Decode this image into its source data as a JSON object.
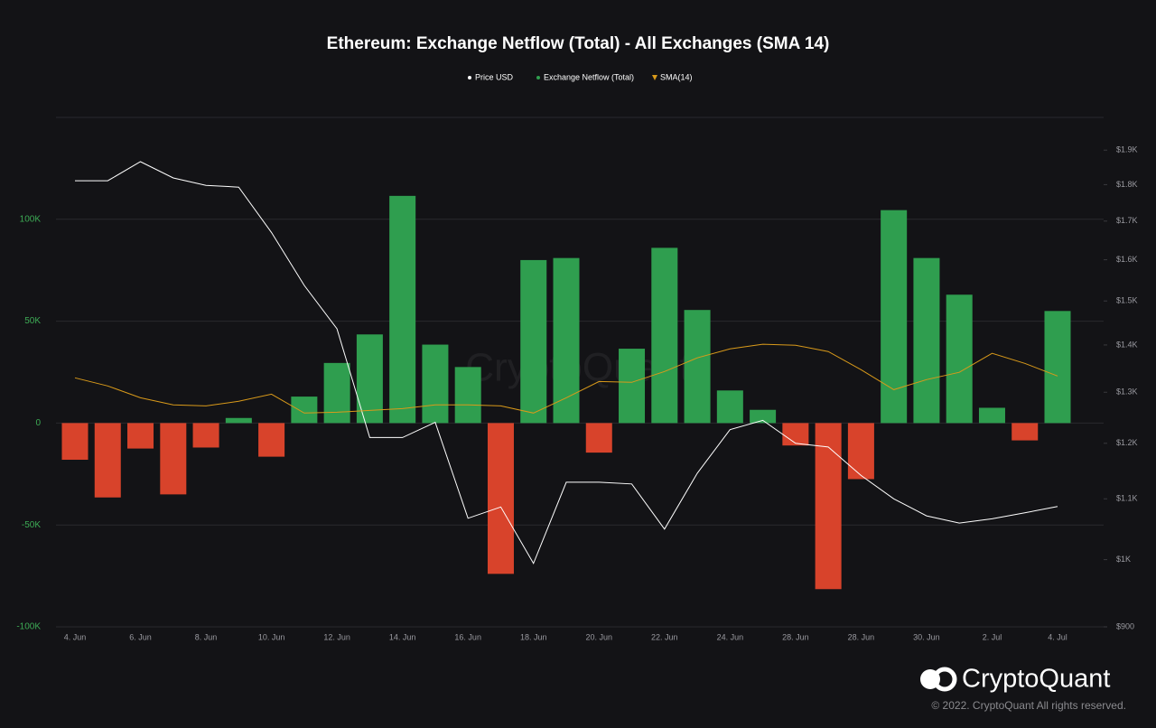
{
  "chart_data": {
    "type": "bar",
    "title": "Ethereum: Exchange Netflow (Total) - All Exchanges (SMA 14)",
    "watermark": "CryptoQuant",
    "categories": [
      "4. Jun",
      null,
      "6. Jun",
      null,
      "8. Jun",
      null,
      "10. Jun",
      null,
      "12. Jun",
      null,
      "14. Jun",
      null,
      "16. Jun",
      null,
      "18. Jun",
      null,
      "20. Jun",
      null,
      "22. Jun",
      null,
      "24. Jun",
      null,
      "28. Jun",
      null,
      "28. Jun",
      null,
      "30. Jun",
      null,
      "2. Jul",
      null,
      "4. Jul"
    ],
    "series": [
      {
        "name": "Price USD",
        "type": "line",
        "axis": "y2",
        "color": "#ffffff",
        "values": [
          1811,
          1811,
          1866,
          1819,
          1798,
          1793,
          1670,
          1537,
          1436,
          1211,
          1211,
          1240,
          1067,
          1086,
          994,
          1129,
          1129,
          1126,
          1049,
          1145,
          1226,
          1244,
          1200,
          1193,
          1141,
          1100,
          1071,
          1059,
          1066,
          1076,
          1087
        ]
      },
      {
        "name": "Exchange Netflow (Total)",
        "type": "bar",
        "color": "#2f9e4f",
        "negative_color": "#d8432b",
        "values": [
          -18000,
          -36500,
          -12500,
          -35000,
          -12000,
          2500,
          -16500,
          13000,
          29500,
          43500,
          111500,
          38500,
          27500,
          -74000,
          80000,
          81000,
          -14500,
          36500,
          86000,
          55500,
          16000,
          6500,
          -11000,
          -81500,
          -27500,
          104500,
          81000,
          63000,
          7500,
          -8500,
          55000
        ]
      },
      {
        "name": "SMA(14)",
        "type": "line",
        "color": "#d99a1a",
        "values": [
          22200,
          18200,
          12400,
          8900,
          8400,
          10700,
          14200,
          4900,
          5300,
          6200,
          7100,
          8900,
          8900,
          8400,
          4900,
          12400,
          20400,
          20000,
          25300,
          32000,
          36400,
          38700,
          38200,
          35100,
          26200,
          16400,
          21300,
          24900,
          34200,
          29300,
          23100
        ]
      }
    ],
    "ylim": [
      -100000,
      150000
    ],
    "yticks": [
      {
        "value": -100000,
        "label": "-100K"
      },
      {
        "value": -50000,
        "label": "-50K"
      },
      0,
      {
        "value": 50000,
        "label": "50K"
      },
      {
        "value": 100000,
        "label": "100K"
      }
    ],
    "y_tick_color": "#3dab55",
    "y2lim": [
      900,
      2000
    ],
    "y2log": true,
    "y2ticks": [
      {
        "value": 900,
        "label": "$900"
      },
      {
        "value": 1000,
        "label": "$1K"
      },
      {
        "value": 1100,
        "label": "$1.1K"
      },
      {
        "value": 1200,
        "label": "$1.2K"
      },
      {
        "value": 1300,
        "label": "$1.3K"
      },
      {
        "value": 1400,
        "label": "$1.4K"
      },
      {
        "value": 1500,
        "label": "$1.5K"
      },
      {
        "value": 1600,
        "label": "$1.6K"
      },
      {
        "value": 1700,
        "label": "$1.7K"
      },
      {
        "value": 1800,
        "label": "$1.8K"
      },
      {
        "value": 1900,
        "label": "$1.9K"
      }
    ],
    "grid": true,
    "legend": "top"
  },
  "footer": {
    "brand": "CryptoQuant",
    "copyright": "© 2022. CryptoQuant All rights reserved."
  }
}
